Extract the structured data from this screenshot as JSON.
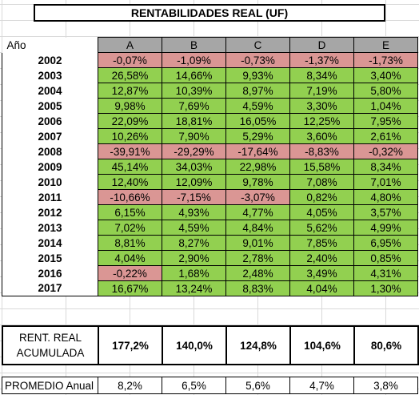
{
  "title": "RENTABILIDADES REAL (UF)",
  "year_header": "Año",
  "columns": [
    "A",
    "B",
    "C",
    "D",
    "E"
  ],
  "rows": [
    {
      "year": "2002",
      "values": [
        "-0,07%",
        "-1,09%",
        "-0,73%",
        "-1,37%",
        "-1,73%"
      ]
    },
    {
      "year": "2003",
      "values": [
        "26,58%",
        "14,66%",
        "9,93%",
        "8,34%",
        "3,40%"
      ]
    },
    {
      "year": "2004",
      "values": [
        "12,87%",
        "10,39%",
        "8,97%",
        "7,19%",
        "5,80%"
      ]
    },
    {
      "year": "2005",
      "values": [
        "9,98%",
        "7,69%",
        "4,59%",
        "3,30%",
        "1,04%"
      ]
    },
    {
      "year": "2006",
      "values": [
        "22,09%",
        "18,81%",
        "16,05%",
        "12,25%",
        "7,95%"
      ]
    },
    {
      "year": "2007",
      "values": [
        "10,26%",
        "7,90%",
        "5,29%",
        "3,60%",
        "2,61%"
      ]
    },
    {
      "year": "2008",
      "values": [
        "-39,91%",
        "-29,29%",
        "-17,64%",
        "-8,83%",
        "-0,32%"
      ]
    },
    {
      "year": "2009",
      "values": [
        "45,14%",
        "34,03%",
        "22,98%",
        "15,58%",
        "8,34%"
      ]
    },
    {
      "year": "2010",
      "values": [
        "12,40%",
        "12,09%",
        "9,78%",
        "7,08%",
        "7,01%"
      ]
    },
    {
      "year": "2011",
      "values": [
        "-10,66%",
        "-7,15%",
        "-3,07%",
        "0,82%",
        "4,80%"
      ]
    },
    {
      "year": "2012",
      "values": [
        "6,15%",
        "4,93%",
        "4,77%",
        "4,05%",
        "3,57%"
      ]
    },
    {
      "year": "2013",
      "values": [
        "7,02%",
        "4,59%",
        "4,84%",
        "5,62%",
        "4,99%"
      ]
    },
    {
      "year": "2014",
      "values": [
        "8,81%",
        "8,27%",
        "9,01%",
        "7,85%",
        "6,95%"
      ]
    },
    {
      "year": "2015",
      "values": [
        "4,04%",
        "2,90%",
        "2,78%",
        "2,40%",
        "0,85%"
      ]
    },
    {
      "year": "2016",
      "values": [
        "-0,22%",
        "1,68%",
        "2,48%",
        "3,49%",
        "4,31%"
      ]
    },
    {
      "year": "2017",
      "values": [
        "16,67%",
        "13,24%",
        "8,83%",
        "4,04%",
        "1,30%"
      ]
    }
  ],
  "accumulated": {
    "label": "RENT. REAL ACUMULADA",
    "values": [
      "177,2%",
      "140,0%",
      "124,8%",
      "104,6%",
      "80,6%"
    ]
  },
  "average": {
    "label": "PROMEDIO Anual",
    "values": [
      "8,2%",
      "6,5%",
      "5,6%",
      "4,7%",
      "3,8%"
    ]
  },
  "colors": {
    "positive": "#92d050",
    "negative": "#da9694",
    "header": "#a6a6a6"
  }
}
